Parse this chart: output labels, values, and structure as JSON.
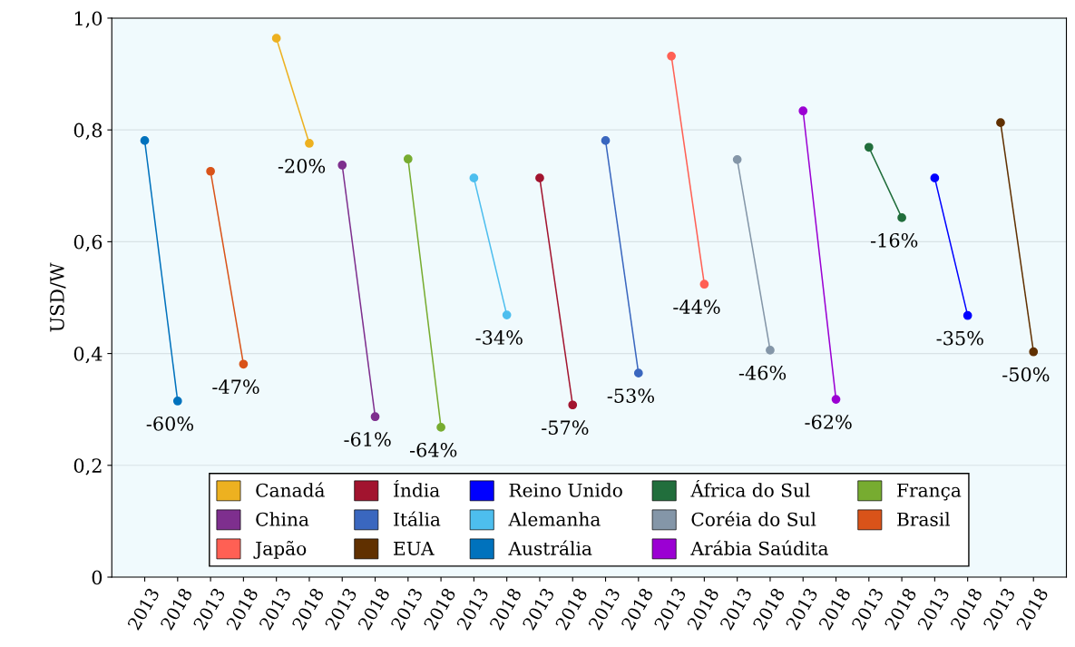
{
  "chart_data": {
    "type": "line",
    "ylabel": "USD/W",
    "categories": [
      "2013",
      "2018",
      "2013",
      "2018",
      "2013",
      "2018",
      "2013",
      "2018",
      "2013",
      "2018",
      "2013",
      "2018",
      "2013",
      "2018",
      "2013",
      "2018",
      "2013",
      "2018",
      "2013",
      "2018",
      "2013",
      "2018",
      "2013",
      "2018",
      "2013",
      "2018",
      "2013",
      "2018"
    ],
    "series": [
      {
        "name": "Canadá",
        "color": "#edb120",
        "values": [
          null,
          null,
          null,
          null,
          0.964,
          0.776,
          null,
          null,
          null,
          null,
          null,
          null,
          null,
          null,
          null,
          null,
          null,
          null,
          null,
          null,
          null,
          null,
          null,
          null,
          null,
          null,
          null,
          null
        ]
      },
      {
        "name": "Índia",
        "color": "#a2142f",
        "values": [
          null,
          null,
          null,
          null,
          null,
          null,
          null,
          null,
          null,
          null,
          null,
          null,
          0.714,
          0.308,
          null,
          null,
          null,
          null,
          null,
          null,
          null,
          null,
          null,
          null,
          null,
          null,
          null,
          null
        ]
      },
      {
        "name": "Reino Unido",
        "color": "#0000ff",
        "values": [
          null,
          null,
          null,
          null,
          null,
          null,
          null,
          null,
          null,
          null,
          null,
          null,
          null,
          null,
          null,
          null,
          null,
          null,
          null,
          null,
          null,
          null,
          null,
          null,
          0.714,
          0.468,
          null,
          null
        ]
      },
      {
        "name": "África do Sul",
        "color": "#216e3c",
        "values": [
          null,
          null,
          null,
          null,
          null,
          null,
          null,
          null,
          null,
          null,
          null,
          null,
          null,
          null,
          null,
          null,
          null,
          null,
          null,
          null,
          null,
          null,
          0.769,
          0.643,
          null,
          null,
          null,
          null
        ]
      },
      {
        "name": "França",
        "color": "#77ac30",
        "values": [
          null,
          null,
          null,
          null,
          null,
          null,
          null,
          null,
          0.748,
          0.268,
          null,
          null,
          null,
          null,
          null,
          null,
          null,
          null,
          null,
          null,
          null,
          null,
          null,
          null,
          null,
          null,
          null,
          null
        ]
      },
      {
        "name": "China",
        "color": "#7e2f8e",
        "values": [
          null,
          null,
          null,
          null,
          null,
          null,
          0.737,
          0.287,
          null,
          null,
          null,
          null,
          null,
          null,
          null,
          null,
          null,
          null,
          null,
          null,
          null,
          null,
          null,
          null,
          null,
          null,
          null,
          null
        ]
      },
      {
        "name": "Itália",
        "color": "#3a67bf",
        "values": [
          null,
          null,
          null,
          null,
          null,
          null,
          null,
          null,
          null,
          null,
          null,
          null,
          null,
          null,
          0.781,
          0.365,
          null,
          null,
          null,
          null,
          null,
          null,
          null,
          null,
          null,
          null,
          null,
          null
        ]
      },
      {
        "name": "Alemanha",
        "color": "#4dbeee",
        "values": [
          null,
          null,
          null,
          null,
          null,
          null,
          null,
          null,
          null,
          null,
          0.714,
          0.469,
          null,
          null,
          null,
          null,
          null,
          null,
          null,
          null,
          null,
          null,
          null,
          null,
          null,
          null,
          null,
          null
        ]
      },
      {
        "name": "Coréia do Sul",
        "color": "#8496a8",
        "values": [
          null,
          null,
          null,
          null,
          null,
          null,
          null,
          null,
          null,
          null,
          null,
          null,
          null,
          null,
          null,
          null,
          null,
          null,
          0.747,
          0.406,
          null,
          null,
          null,
          null,
          null,
          null,
          null,
          null
        ]
      },
      {
        "name": "Brasil",
        "color": "#d95319",
        "values": [
          null,
          null,
          0.726,
          0.381,
          null,
          null,
          null,
          null,
          null,
          null,
          null,
          null,
          null,
          null,
          null,
          null,
          null,
          null,
          null,
          null,
          null,
          null,
          null,
          null,
          null,
          null,
          null,
          null
        ]
      },
      {
        "name": "Japão",
        "color": "#ff6054",
        "values": [
          null,
          null,
          null,
          null,
          null,
          null,
          null,
          null,
          null,
          null,
          null,
          null,
          null,
          null,
          null,
          null,
          0.932,
          0.524,
          null,
          null,
          null,
          null,
          null,
          null,
          null,
          null,
          null,
          null
        ]
      },
      {
        "name": "EUA",
        "color": "#603000",
        "values": [
          null,
          null,
          null,
          null,
          null,
          null,
          null,
          null,
          null,
          null,
          null,
          null,
          null,
          null,
          null,
          null,
          null,
          null,
          null,
          null,
          null,
          null,
          null,
          null,
          null,
          null,
          0.813,
          0.403
        ]
      },
      {
        "name": "Austrália",
        "color": "#0072bd",
        "values": [
          0.781,
          0.315,
          null,
          null,
          null,
          null,
          null,
          null,
          null,
          null,
          null,
          null,
          null,
          null,
          null,
          null,
          null,
          null,
          null,
          null,
          null,
          null,
          null,
          null,
          null,
          null,
          null,
          null
        ]
      },
      {
        "name": "Arábia Saúdita",
        "color": "#9b00d3",
        "values": [
          null,
          null,
          null,
          null,
          null,
          null,
          null,
          null,
          null,
          null,
          null,
          null,
          null,
          null,
          null,
          null,
          null,
          null,
          null,
          null,
          0.834,
          0.318,
          null,
          null,
          null,
          null,
          null,
          null
        ]
      }
    ],
    "ylim": [
      0,
      1
    ],
    "yticks": [
      0,
      {
        "value": 0.2,
        "label": "0,2"
      },
      {
        "value": 0.4,
        "label": "0,4"
      },
      {
        "value": 0.6,
        "label": "0,6"
      },
      {
        "value": 0.8,
        "label": "0,8"
      },
      {
        "value": 1.0,
        "label": "1,0"
      }
    ],
    "annotations": [
      "-20%",
      "-57%",
      "-35%",
      "-16%",
      "-64%",
      "-61%",
      "-53%",
      "-34%",
      "-46%",
      "-47%",
      "-44%",
      "-50%",
      "-60%",
      "-62%"
    ],
    "grid": "y",
    "legend": "bottom",
    "marker": "circle",
    "line_style": "solid"
  }
}
